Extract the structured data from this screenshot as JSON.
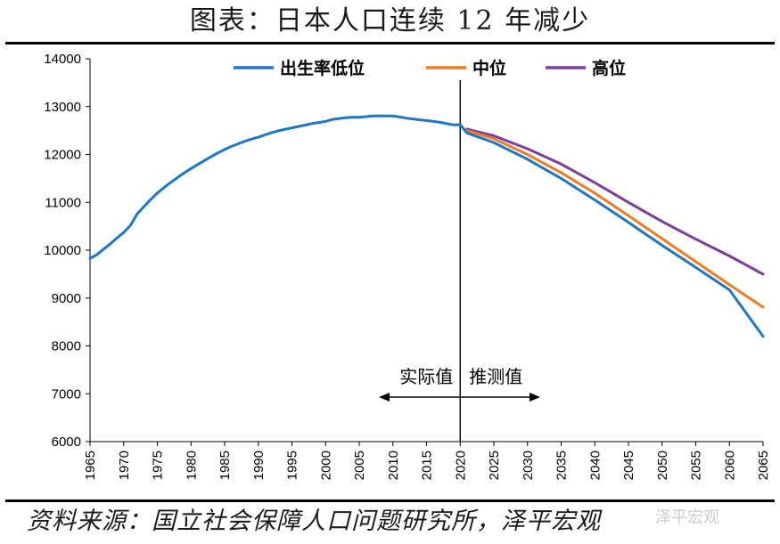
{
  "title": "图表：日本人口连续 12 年减少",
  "source": "资料来源：国立社会保障人口问题研究所，泽平宏观",
  "watermark": "泽平宏观",
  "chart_data": {
    "type": "line",
    "ylim": [
      6000,
      14000
    ],
    "yticks": [
      6000,
      7000,
      8000,
      9000,
      10000,
      11000,
      12000,
      13000,
      14000
    ],
    "xlim": [
      1965,
      2065
    ],
    "xticks": [
      1965,
      1970,
      1975,
      1980,
      1985,
      1990,
      1995,
      2000,
      2005,
      2010,
      2015,
      2020,
      2025,
      2030,
      2035,
      2040,
      2045,
      2050,
      2055,
      2060,
      2065
    ],
    "legend_position": "top",
    "divider_year": 2020,
    "annotations": {
      "actual": "实际值",
      "projection": "推测值"
    },
    "series": [
      {
        "name": "出生率低位",
        "color": "#1f77c4",
        "x": [
          1965,
          1966,
          1967,
          1968,
          1969,
          1970,
          1971,
          1972,
          1973,
          1974,
          1975,
          1976,
          1977,
          1978,
          1979,
          1980,
          1981,
          1982,
          1983,
          1984,
          1985,
          1986,
          1987,
          1988,
          1989,
          1990,
          1991,
          1992,
          1993,
          1994,
          1995,
          1996,
          1997,
          1998,
          1999,
          2000,
          2001,
          2002,
          2003,
          2004,
          2005,
          2006,
          2007,
          2008,
          2009,
          2010,
          2011,
          2012,
          2013,
          2014,
          2015,
          2016,
          2017,
          2018,
          2019,
          2020,
          2021,
          2025,
          2030,
          2035,
          2040,
          2045,
          2050,
          2055,
          2060,
          2065
        ],
        "values": [
          9828,
          9904,
          10020,
          10133,
          10254,
          10372,
          10515,
          10760,
          10910,
          11057,
          11194,
          11309,
          11417,
          11519,
          11616,
          11706,
          11790,
          11873,
          11955,
          12034,
          12105,
          12167,
          12224,
          12275,
          12321,
          12361,
          12410,
          12457,
          12494,
          12526,
          12557,
          12586,
          12616,
          12647,
          12667,
          12693,
          12732,
          12749,
          12769,
          12779,
          12777,
          12790,
          12803,
          12808,
          12803,
          12806,
          12783,
          12759,
          12741,
          12724,
          12709,
          12693,
          12671,
          12644,
          12617,
          12623,
          12450,
          12250,
          11900,
          11500,
          11050,
          10580,
          10100,
          9640,
          9170,
          8200
        ]
      },
      {
        "name": "中位",
        "color": "#ee7c22",
        "x": [
          2021,
          2025,
          2030,
          2035,
          2040,
          2045,
          2050,
          2055,
          2060,
          2065
        ],
        "values": [
          12500,
          12330,
          12000,
          11620,
          11190,
          10720,
          10240,
          9760,
          9280,
          8810
        ]
      },
      {
        "name": "高位",
        "color": "#7a3e9d",
        "x": [
          2021,
          2025,
          2030,
          2035,
          2040,
          2045,
          2050,
          2055,
          2060,
          2065
        ],
        "values": [
          12530,
          12390,
          12120,
          11800,
          11410,
          11000,
          10600,
          10230,
          9880,
          9500
        ]
      }
    ]
  }
}
